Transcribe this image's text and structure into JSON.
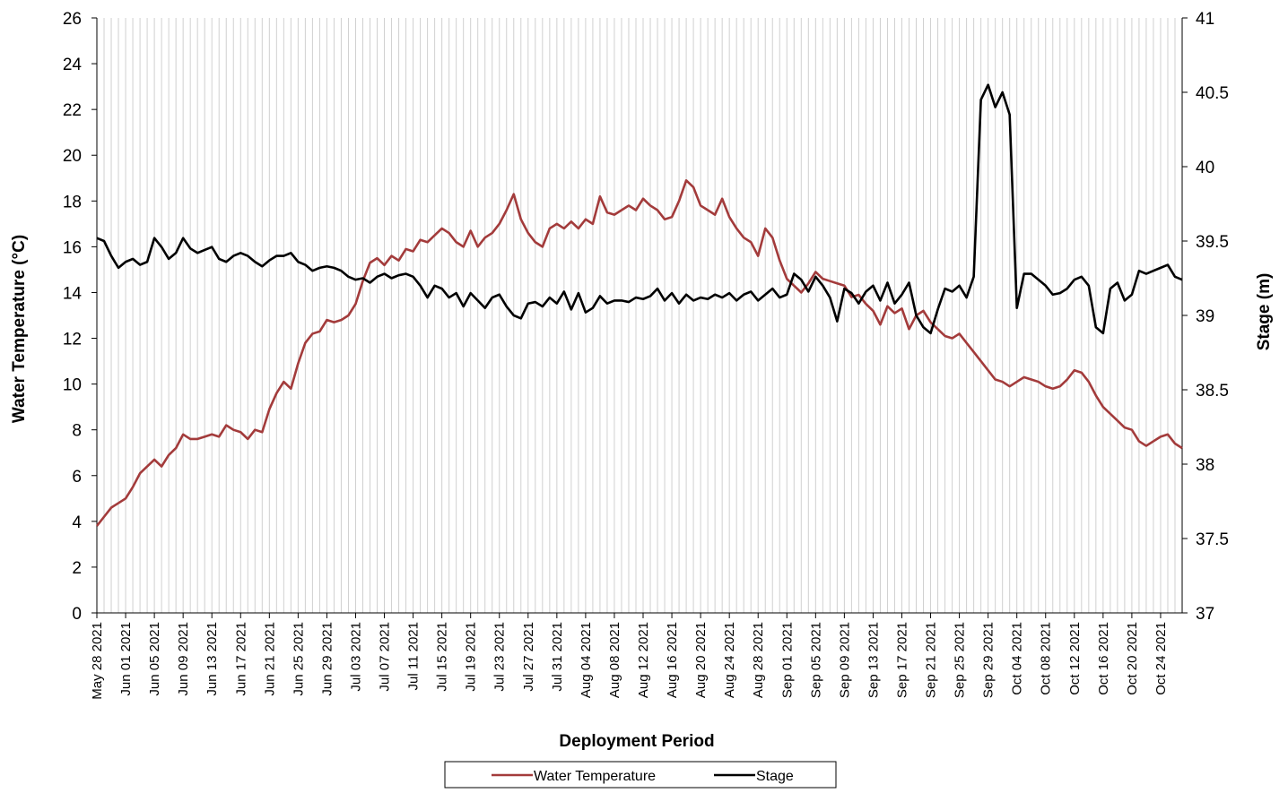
{
  "chart_data": {
    "type": "line",
    "x_label": "Deployment Period",
    "y_label": "Water Temperature (°C)",
    "y2_label": "Stage (m)",
    "categories": [
      "May 28 2021",
      null,
      null,
      null,
      "Jun 01 2021",
      null,
      null,
      null,
      "Jun 05 2021",
      null,
      null,
      null,
      "Jun 09 2021",
      null,
      null,
      null,
      "Jun 13 2021",
      null,
      null,
      null,
      "Jun 17 2021",
      null,
      null,
      null,
      "Jun 21 2021",
      null,
      null,
      null,
      "Jun 25 2021",
      null,
      null,
      null,
      "Jun 29 2021",
      null,
      null,
      null,
      "Jul 03 2021",
      null,
      null,
      null,
      "Jul 07 2021",
      null,
      null,
      null,
      "Jul 11 2021",
      null,
      null,
      null,
      "Jul 15 2021",
      null,
      null,
      null,
      "Jul 19 2021",
      null,
      null,
      null,
      "Jul 23 2021",
      null,
      null,
      null,
      "Jul 27 2021",
      null,
      null,
      null,
      "Jul 31 2021",
      null,
      null,
      null,
      "Aug 04 2021",
      null,
      null,
      null,
      "Aug 08 2021",
      null,
      null,
      null,
      "Aug 12 2021",
      null,
      null,
      null,
      "Aug 16 2021",
      null,
      null,
      null,
      "Aug 20 2021",
      null,
      null,
      null,
      "Aug 24 2021",
      null,
      null,
      null,
      "Aug 28 2021",
      null,
      null,
      null,
      "Sep 01 2021",
      null,
      null,
      null,
      "Sep 05 2021",
      null,
      null,
      null,
      "Sep 09 2021",
      null,
      null,
      null,
      "Sep 13 2021",
      null,
      null,
      null,
      "Sep 17 2021",
      null,
      null,
      null,
      "Sep 21 2021",
      null,
      null,
      null,
      "Sep 25 2021",
      null,
      null,
      null,
      "Sep 29 2021",
      null,
      null,
      null,
      "Oct 04 2021",
      null,
      null,
      null,
      "Oct 08 2021",
      null,
      null,
      null,
      "Oct 12 2021",
      null,
      null,
      null,
      "Oct 16 2021",
      null,
      null,
      null,
      "Oct 20 2021",
      null,
      null,
      null,
      "Oct 24 2021",
      null,
      null,
      null
    ],
    "series": [
      {
        "name": "Water Temperature",
        "color": "#a33b3b",
        "axis": "y",
        "values": [
          3.8,
          4.2,
          4.6,
          4.8,
          5.0,
          5.5,
          6.1,
          6.4,
          6.7,
          6.4,
          6.9,
          7.2,
          7.8,
          7.6,
          7.6,
          7.7,
          7.8,
          7.7,
          8.2,
          8.0,
          7.9,
          7.6,
          8.0,
          7.9,
          8.9,
          9.6,
          10.1,
          9.8,
          10.9,
          11.8,
          12.2,
          12.3,
          12.8,
          12.7,
          12.8,
          13.0,
          13.5,
          14.5,
          15.3,
          15.5,
          15.2,
          15.6,
          15.4,
          15.9,
          15.8,
          16.3,
          16.2,
          16.5,
          16.8,
          16.6,
          16.2,
          16.0,
          16.7,
          16.0,
          16.4,
          16.6,
          17.0,
          17.6,
          18.3,
          17.2,
          16.6,
          16.2,
          16.0,
          16.8,
          17.0,
          16.8,
          17.1,
          16.8,
          17.2,
          17.0,
          18.2,
          17.5,
          17.4,
          17.6,
          17.8,
          17.6,
          18.1,
          17.8,
          17.6,
          17.2,
          17.3,
          18.0,
          18.9,
          18.6,
          17.8,
          17.6,
          17.4,
          18.1,
          17.3,
          16.8,
          16.4,
          16.2,
          15.6,
          16.8,
          16.4,
          15.4,
          14.6,
          14.3,
          14.0,
          14.4,
          14.9,
          14.6,
          14.5,
          14.4,
          14.3,
          13.8,
          13.9,
          13.5,
          13.2,
          12.6,
          13.4,
          13.1,
          13.3,
          12.4,
          13.0,
          13.2,
          12.7,
          12.4,
          12.1,
          12.0,
          12.2,
          11.8,
          11.4,
          11.0,
          10.6,
          10.2,
          10.1,
          9.9,
          10.1,
          10.3,
          10.2,
          10.1,
          9.9,
          9.8,
          9.9,
          10.2,
          10.6,
          10.5,
          10.1,
          9.5,
          9.0,
          8.7,
          8.4,
          8.1,
          8.0,
          7.5,
          7.3,
          7.5,
          7.7,
          7.8,
          7.4,
          7.2
        ]
      },
      {
        "name": "Stage",
        "color": "#000000",
        "axis": "y2",
        "values": [
          39.52,
          39.5,
          39.4,
          39.32,
          39.36,
          39.38,
          39.34,
          39.36,
          39.52,
          39.46,
          39.38,
          39.42,
          39.52,
          39.45,
          39.42,
          39.44,
          39.46,
          39.38,
          39.36,
          39.4,
          39.42,
          39.4,
          39.36,
          39.33,
          39.37,
          39.4,
          39.4,
          39.42,
          39.36,
          39.34,
          39.3,
          39.32,
          39.33,
          39.32,
          39.3,
          39.26,
          39.24,
          39.25,
          39.22,
          39.26,
          39.28,
          39.25,
          39.27,
          39.28,
          39.26,
          39.2,
          39.12,
          39.2,
          39.18,
          39.12,
          39.15,
          39.06,
          39.15,
          39.1,
          39.05,
          39.12,
          39.14,
          39.06,
          39.0,
          38.98,
          39.08,
          39.09,
          39.06,
          39.12,
          39.08,
          39.16,
          39.04,
          39.15,
          39.02,
          39.05,
          39.13,
          39.08,
          39.1,
          39.1,
          39.09,
          39.12,
          39.11,
          39.13,
          39.18,
          39.1,
          39.15,
          39.08,
          39.14,
          39.1,
          39.12,
          39.11,
          39.14,
          39.12,
          39.15,
          39.1,
          39.14,
          39.16,
          39.1,
          39.14,
          39.18,
          39.12,
          39.14,
          39.28,
          39.24,
          39.16,
          39.26,
          39.2,
          39.12,
          38.96,
          39.18,
          39.15,
          39.08,
          39.16,
          39.2,
          39.1,
          39.22,
          39.08,
          39.14,
          39.22,
          39.0,
          38.92,
          38.88,
          39.04,
          39.18,
          39.16,
          39.2,
          39.12,
          39.26,
          40.45,
          40.55,
          40.4,
          40.5,
          40.35,
          39.05,
          39.28,
          39.28,
          39.24,
          39.2,
          39.14,
          39.15,
          39.18,
          39.24,
          39.26,
          39.2,
          38.92,
          38.88,
          39.18,
          39.22,
          39.1,
          39.14,
          39.3,
          39.28,
          39.3,
          39.32,
          39.34,
          39.26,
          39.24
        ]
      }
    ],
    "ylim": [
      0,
      26
    ],
    "yticks": [
      0,
      2,
      4,
      6,
      8,
      10,
      12,
      14,
      16,
      18,
      20,
      22,
      24,
      26
    ],
    "y2lim": [
      37,
      41
    ],
    "y2ticks": [
      37,
      37.5,
      38,
      38.5,
      39,
      39.5,
      40,
      40.5,
      41
    ],
    "grid": true
  }
}
